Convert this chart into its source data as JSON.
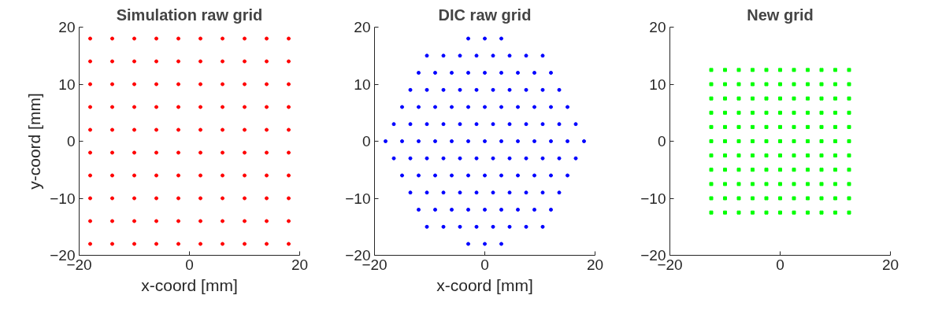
{
  "chart_data": [
    {
      "type": "scatter",
      "title": "Simulation raw grid",
      "xlabel": "x-coord [mm]",
      "ylabel": "y-coord [mm]",
      "color": "#ff0000",
      "marker": "circle",
      "xlim": [
        -20,
        20
      ],
      "ylim": [
        -20,
        20
      ],
      "xticks": [
        -20,
        0,
        20
      ],
      "yticks": [
        -20,
        -10,
        0,
        10,
        20
      ],
      "x": [
        -18,
        -14,
        -10,
        -6,
        -2,
        2,
        6,
        10,
        14,
        18,
        -18,
        -14,
        -10,
        -6,
        -2,
        2,
        6,
        10,
        14,
        18,
        -18,
        -14,
        -10,
        -6,
        -2,
        2,
        6,
        10,
        14,
        18,
        -18,
        -14,
        -10,
        -6,
        -2,
        2,
        6,
        10,
        14,
        18,
        -18,
        -14,
        -10,
        -6,
        -2,
        2,
        6,
        10,
        14,
        18,
        -18,
        -14,
        -10,
        -6,
        -2,
        2,
        6,
        10,
        14,
        18,
        -18,
        -14,
        -10,
        -6,
        -2,
        2,
        6,
        10,
        14,
        18,
        -18,
        -14,
        -10,
        -6,
        -2,
        2,
        6,
        10,
        14,
        18,
        -18,
        -14,
        -10,
        -6,
        -2,
        2,
        6,
        10,
        14,
        18,
        -18,
        -14,
        -10,
        -6,
        -2,
        2,
        6,
        10,
        14,
        18
      ],
      "values": [
        -18,
        -18,
        -18,
        -18,
        -18,
        -18,
        -18,
        -18,
        -18,
        -18,
        -14,
        -14,
        -14,
        -14,
        -14,
        -14,
        -14,
        -14,
        -14,
        -14,
        -10,
        -10,
        -10,
        -10,
        -10,
        -10,
        -10,
        -10,
        -10,
        -10,
        -6,
        -6,
        -6,
        -6,
        -6,
        -6,
        -6,
        -6,
        -6,
        -6,
        -2,
        -2,
        -2,
        -2,
        -2,
        -2,
        -2,
        -2,
        -2,
        -2,
        2,
        2,
        2,
        2,
        2,
        2,
        2,
        2,
        2,
        2,
        6,
        6,
        6,
        6,
        6,
        6,
        6,
        6,
        6,
        6,
        10,
        10,
        10,
        10,
        10,
        10,
        10,
        10,
        10,
        10,
        14,
        14,
        14,
        14,
        14,
        14,
        14,
        14,
        14,
        14,
        18,
        18,
        18,
        18,
        18,
        18,
        18,
        18,
        18,
        18
      ]
    },
    {
      "type": "scatter",
      "title": "DIC raw grid",
      "xlabel": "x-coord [mm]",
      "color": "#0000ff",
      "marker": "circle",
      "xlim": [
        -20,
        20
      ],
      "ylim": [
        -20,
        20
      ],
      "xticks": [
        -20,
        0,
        20
      ],
      "yticks": [
        -20,
        -10,
        0,
        10,
        20
      ],
      "x": [
        -3,
        0,
        3,
        -10.5,
        -7.5,
        -4.5,
        -1.5,
        1.5,
        4.5,
        7.5,
        10.5,
        -12,
        -9,
        -6,
        -3,
        0,
        3,
        6,
        9,
        12,
        -13.5,
        -10.5,
        -7.5,
        -4.5,
        -1.5,
        1.5,
        4.5,
        7.5,
        10.5,
        13.5,
        -15,
        -12,
        -9,
        -6,
        -3,
        0,
        3,
        6,
        9,
        12,
        15,
        -16.5,
        -13.5,
        -10.5,
        -7.5,
        -4.5,
        -1.5,
        1.5,
        4.5,
        7.5,
        10.5,
        13.5,
        16.5,
        -18,
        -15,
        -12,
        -9,
        -6,
        -3,
        0,
        3,
        6,
        9,
        12,
        15,
        18,
        -16.5,
        -13.5,
        -10.5,
        -7.5,
        -4.5,
        -1.5,
        1.5,
        4.5,
        7.5,
        10.5,
        13.5,
        16.5,
        -15,
        -12,
        -9,
        -6,
        -3,
        0,
        3,
        6,
        9,
        12,
        15,
        -13.5,
        -10.5,
        -7.5,
        -4.5,
        -1.5,
        1.5,
        4.5,
        7.5,
        10.5,
        13.5,
        -12,
        -9,
        -6,
        -3,
        0,
        3,
        6,
        9,
        12,
        -10.5,
        -7.5,
        -4.5,
        -1.5,
        1.5,
        4.5,
        7.5,
        10.5,
        -3,
        0,
        3
      ],
      "values": [
        18,
        18,
        18,
        15,
        15,
        15,
        15,
        15,
        15,
        15,
        15,
        12,
        12,
        12,
        12,
        12,
        12,
        12,
        12,
        12,
        9,
        9,
        9,
        9,
        9,
        9,
        9,
        9,
        9,
        9,
        6,
        6,
        6,
        6,
        6,
        6,
        6,
        6,
        6,
        6,
        6,
        3,
        3,
        3,
        3,
        3,
        3,
        3,
        3,
        3,
        3,
        3,
        3,
        0,
        0,
        0,
        0,
        0,
        0,
        0,
        0,
        0,
        0,
        0,
        0,
        0,
        -3,
        -3,
        -3,
        -3,
        -3,
        -3,
        -3,
        -3,
        -3,
        -3,
        -3,
        -3,
        -6,
        -6,
        -6,
        -6,
        -6,
        -6,
        -6,
        -6,
        -6,
        -6,
        -6,
        -9,
        -9,
        -9,
        -9,
        -9,
        -9,
        -9,
        -9,
        -9,
        -9,
        -12,
        -12,
        -12,
        -12,
        -12,
        -12,
        -12,
        -12,
        -12,
        -15,
        -15,
        -15,
        -15,
        -15,
        -15,
        -15,
        -15,
        -18,
        -18,
        -18
      ]
    },
    {
      "type": "scatter",
      "title": "New grid",
      "color": "#00ff00",
      "marker": "square",
      "xlim": [
        -20,
        20
      ],
      "ylim": [
        -20,
        20
      ],
      "xticks": [
        -20,
        0,
        20
      ],
      "yticks": [
        -20,
        -10,
        0,
        10,
        20
      ],
      "x": [
        -12.5,
        -10,
        -7.5,
        -5,
        -2.5,
        0,
        2.5,
        5,
        7.5,
        10,
        12.5,
        -12.5,
        -10,
        -7.5,
        -5,
        -2.5,
        0,
        2.5,
        5,
        7.5,
        10,
        12.5,
        -12.5,
        -10,
        -7.5,
        -5,
        -2.5,
        0,
        2.5,
        5,
        7.5,
        10,
        12.5,
        -12.5,
        -10,
        -7.5,
        -5,
        -2.5,
        0,
        2.5,
        5,
        7.5,
        10,
        12.5,
        -12.5,
        -10,
        -7.5,
        -5,
        -2.5,
        0,
        2.5,
        5,
        7.5,
        10,
        12.5,
        -12.5,
        -10,
        -7.5,
        -5,
        -2.5,
        0,
        2.5,
        5,
        7.5,
        10,
        12.5,
        -12.5,
        -10,
        -7.5,
        -5,
        -2.5,
        0,
        2.5,
        5,
        7.5,
        10,
        12.5,
        -12.5,
        -10,
        -7.5,
        -5,
        -2.5,
        0,
        2.5,
        5,
        7.5,
        10,
        12.5,
        -12.5,
        -10,
        -7.5,
        -5,
        -2.5,
        0,
        2.5,
        5,
        7.5,
        10,
        12.5,
        -12.5,
        -10,
        -7.5,
        -5,
        -2.5,
        0,
        2.5,
        5,
        7.5,
        10,
        12.5,
        -12.5,
        -10,
        -7.5,
        -5,
        -2.5,
        0,
        2.5,
        5,
        7.5,
        10,
        12.5
      ],
      "values": [
        -12.5,
        -12.5,
        -12.5,
        -12.5,
        -12.5,
        -12.5,
        -12.5,
        -12.5,
        -12.5,
        -12.5,
        -12.5,
        -10,
        -10,
        -10,
        -10,
        -10,
        -10,
        -10,
        -10,
        -10,
        -10,
        -10,
        -7.5,
        -7.5,
        -7.5,
        -7.5,
        -7.5,
        -7.5,
        -7.5,
        -7.5,
        -7.5,
        -7.5,
        -7.5,
        -5,
        -5,
        -5,
        -5,
        -5,
        -5,
        -5,
        -5,
        -5,
        -5,
        -5,
        -2.5,
        -2.5,
        -2.5,
        -2.5,
        -2.5,
        -2.5,
        -2.5,
        -2.5,
        -2.5,
        -2.5,
        -2.5,
        0,
        0,
        0,
        0,
        0,
        0,
        0,
        0,
        0,
        0,
        0,
        2.5,
        2.5,
        2.5,
        2.5,
        2.5,
        2.5,
        2.5,
        2.5,
        2.5,
        2.5,
        2.5,
        5,
        5,
        5,
        5,
        5,
        5,
        5,
        5,
        5,
        5,
        5,
        7.5,
        7.5,
        7.5,
        7.5,
        7.5,
        7.5,
        7.5,
        7.5,
        7.5,
        7.5,
        7.5,
        10,
        10,
        10,
        10,
        10,
        10,
        10,
        10,
        10,
        10,
        10,
        12.5,
        12.5,
        12.5,
        12.5,
        12.5,
        12.5,
        12.5,
        12.5,
        12.5,
        12.5,
        12.5
      ]
    }
  ]
}
